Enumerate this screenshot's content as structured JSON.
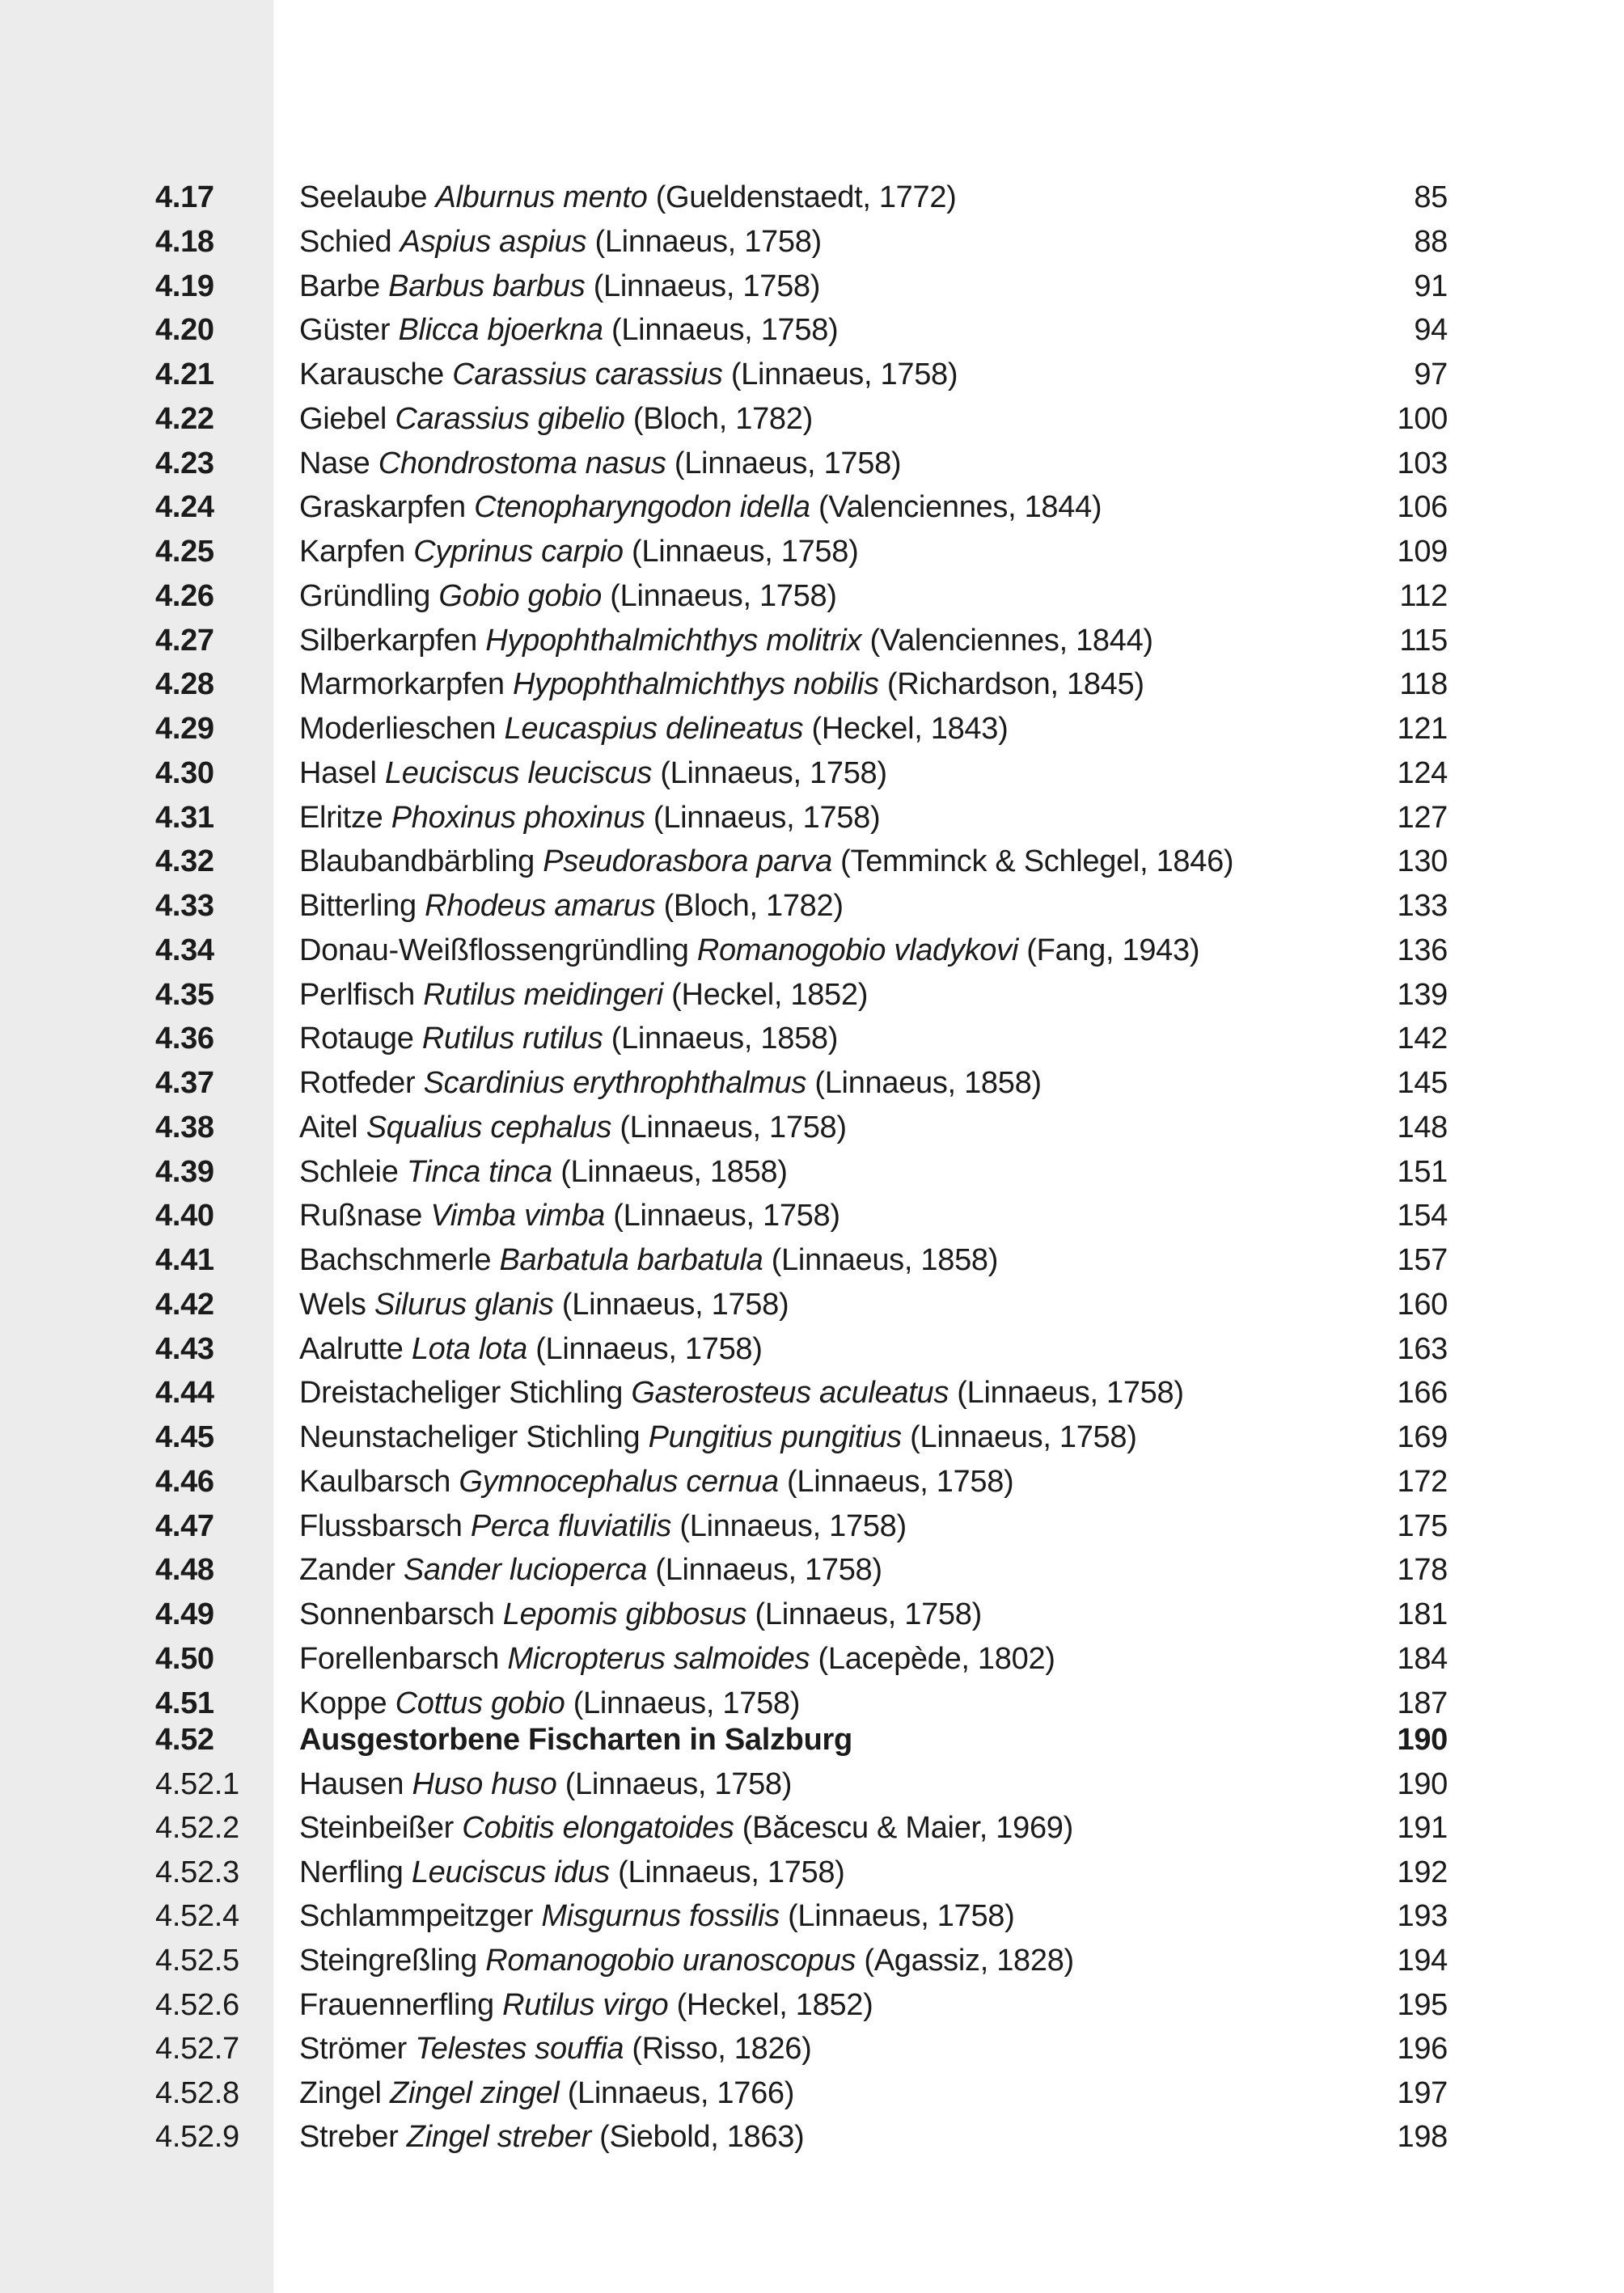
{
  "entries": [
    {
      "num": "4.17",
      "common": "Seelaube",
      "sci": "Alburnus mento",
      "author": "(Gueldenstaedt, 1772)",
      "page": "85",
      "bold_num": true
    },
    {
      "num": "4.18",
      "common": "Schied",
      "sci": "Aspius aspius",
      "author": "(Linnaeus, 1758)",
      "page": "88",
      "bold_num": true
    },
    {
      "num": "4.19",
      "common": "Barbe",
      "sci": "Barbus barbus",
      "author": "(Linnaeus, 1758)",
      "page": "91",
      "bold_num": true
    },
    {
      "num": "4.20",
      "common": "Güster",
      "sci": "Blicca bjoerkna",
      "author": "(Linnaeus, 1758)",
      "page": "94",
      "bold_num": true
    },
    {
      "num": "4.21",
      "common": "Karausche",
      "sci": "Carassius carassius",
      "author": "(Linnaeus, 1758)",
      "page": "97",
      "bold_num": true
    },
    {
      "num": "4.22",
      "common": "Giebel",
      "sci": "Carassius gibelio",
      "author": "(Bloch, 1782)",
      "page": "100",
      "bold_num": true
    },
    {
      "num": "4.23",
      "common": "Nase",
      "sci": "Chondrostoma nasus",
      "author": "(Linnaeus, 1758)",
      "page": "103",
      "bold_num": true
    },
    {
      "num": "4.24",
      "common": "Graskarpfen",
      "sci": "Ctenopharyngodon idella",
      "author": "(Valenciennes, 1844)",
      "page": "106",
      "bold_num": true
    },
    {
      "num": "4.25",
      "common": "Karpfen",
      "sci": "Cyprinus carpio",
      "author": "(Linnaeus, 1758)",
      "page": "109",
      "bold_num": true
    },
    {
      "num": "4.26",
      "common": "Gründling",
      "sci": "Gobio gobio",
      "author": "(Linnaeus, 1758)",
      "page": "112",
      "bold_num": true
    },
    {
      "num": "4.27",
      "common": "Silberkarpfen",
      "sci": "Hypophthalmichthys molitrix",
      "author": "(Valenciennes, 1844)",
      "page": "115",
      "bold_num": true
    },
    {
      "num": "4.28",
      "common": "Marmorkarpfen",
      "sci": "Hypophthalmichthys nobilis",
      "author": "(Richardson, 1845)",
      "page": "118",
      "bold_num": true
    },
    {
      "num": "4.29",
      "common": "Moderlieschen",
      "sci": "Leucaspius delineatus",
      "author": "(Heckel, 1843)",
      "page": "121",
      "bold_num": true
    },
    {
      "num": "4.30",
      "common": "Hasel",
      "sci": "Leuciscus leuciscus",
      "author": "(Linnaeus, 1758)",
      "page": "124",
      "bold_num": true
    },
    {
      "num": "4.31",
      "common": "Elritze",
      "sci": "Phoxinus phoxinus",
      "author": "(Linnaeus, 1758)",
      "page": "127",
      "bold_num": true
    },
    {
      "num": "4.32",
      "common": "Blaubandbärbling",
      "sci": "Pseudorasbora parva",
      "author": "(Temminck & Schlegel, 1846)",
      "page": "130",
      "bold_num": true
    },
    {
      "num": "4.33",
      "common": "Bitterling",
      "sci": "Rhodeus amarus",
      "author": "(Bloch, 1782)",
      "page": "133",
      "bold_num": true
    },
    {
      "num": "4.34",
      "common": "Donau-Weißflossengründling",
      "sci": "Romanogobio vladykovi",
      "author": "(Fang, 1943)",
      "page": "136",
      "bold_num": true
    },
    {
      "num": "4.35",
      "common": "Perlfisch",
      "sci": "Rutilus meidingeri",
      "author": "(Heckel, 1852)",
      "page": "139",
      "bold_num": true
    },
    {
      "num": "4.36",
      "common": "Rotauge",
      "sci": "Rutilus rutilus",
      "author": "(Linnaeus, 1858)",
      "page": "142",
      "bold_num": true
    },
    {
      "num": "4.37",
      "common": "Rotfeder",
      "sci": "Scardinius erythrophthalmus",
      "author": "(Linnaeus, 1858)",
      "page": "145",
      "bold_num": true
    },
    {
      "num": "4.38",
      "common": "Aitel",
      "sci": "Squalius cephalus",
      "author": "(Linnaeus, 1758)",
      "page": "148",
      "bold_num": true
    },
    {
      "num": "4.39",
      "common": "Schleie",
      "sci": "Tinca tinca",
      "author": "(Linnaeus, 1858)",
      "page": "151",
      "bold_num": true
    },
    {
      "num": "4.40",
      "common": "Rußnase",
      "sci": "Vimba vimba",
      "author": "(Linnaeus, 1758)",
      "page": "154",
      "bold_num": true
    },
    {
      "num": "4.41",
      "common": "Bachschmerle",
      "sci": "Barbatula barbatula",
      "author": "(Linnaeus, 1858)",
      "page": "157",
      "bold_num": true
    },
    {
      "num": "4.42",
      "common": "Wels",
      "sci": "Silurus glanis",
      "author": "(Linnaeus, 1758)",
      "page": "160",
      "bold_num": true
    },
    {
      "num": "4.43",
      "common": "Aalrutte",
      "sci": "Lota lota",
      "author": "(Linnaeus, 1758)",
      "page": "163",
      "bold_num": true
    },
    {
      "num": "4.44",
      "common": "Dreistacheliger Stichling",
      "sci": "Gasterosteus aculeatus",
      "author": "(Linnaeus, 1758)",
      "page": "166",
      "bold_num": true
    },
    {
      "num": "4.45",
      "common": "Neunstacheliger Stichling",
      "sci": "Pungitius pungitius",
      "author": "(Linnaeus, 1758)",
      "page": "169",
      "bold_num": true
    },
    {
      "num": "4.46",
      "common": "Kaulbarsch",
      "sci": "Gymnocephalus cernua",
      "author": "(Linnaeus, 1758)",
      "page": "172",
      "bold_num": true
    },
    {
      "num": "4.47",
      "common": "Flussbarsch",
      "sci": "Perca fluviatilis",
      "author": "(Linnaeus, 1758)",
      "page": "175",
      "bold_num": true
    },
    {
      "num": "4.48",
      "common": "Zander",
      "sci": "Sander lucioperca",
      "author": "(Linnaeus, 1758)",
      "page": "178",
      "bold_num": true
    },
    {
      "num": "4.49",
      "common": "Sonnenbarsch",
      "sci": "Lepomis gibbosus",
      "author": "(Linnaeus, 1758)",
      "page": "181",
      "bold_num": true
    },
    {
      "num": "4.50",
      "common": "Forellenbarsch",
      "sci": "Micropterus salmoides",
      "author": "(Lacepède, 1802)",
      "page": "184",
      "bold_num": true
    },
    {
      "num": "4.51",
      "common": "Koppe",
      "sci": "Cottus gobio",
      "author": "(Linnaeus, 1758)",
      "page": "187",
      "bold_num": true
    }
  ],
  "section": {
    "num": "4.52",
    "title": "Ausgestorbene Fischarten in Salzburg",
    "page": "190"
  },
  "subentries": [
    {
      "num": "4.52.1",
      "common": "Hausen",
      "sci": "Huso huso",
      "author": "(Linnaeus, 1758)",
      "page": "190"
    },
    {
      "num": "4.52.2",
      "common": "Steinbeißer",
      "sci": "Cobitis elongatoides",
      "author": "(Băcescu & Maier, 1969)",
      "page": "191"
    },
    {
      "num": "4.52.3",
      "common": "Nerfling",
      "sci": "Leuciscus idus",
      "author": "(Linnaeus, 1758)",
      "page": "192"
    },
    {
      "num": "4.52.4",
      "common": "Schlammpeitzger",
      "sci": "Misgurnus fossilis",
      "author": "(Linnaeus, 1758)",
      "page": "193"
    },
    {
      "num": "4.52.5",
      "common": "Steingreßling",
      "sci": "Romanogobio uranoscopus",
      "author": "(Agassiz, 1828)",
      "page": "194"
    },
    {
      "num": "4.52.6",
      "common": "Frauennerfling",
      "sci": "Rutilus virgo",
      "author": "(Heckel, 1852)",
      "page": "195"
    },
    {
      "num": "4.52.7",
      "common": "Strömer",
      "sci": "Telestes souffia",
      "author": "(Risso, 1826)",
      "page": "196"
    },
    {
      "num": "4.52.8",
      "common": "Zingel",
      "sci": "Zingel zingel",
      "author": "(Linnaeus, 1766)",
      "page": "197"
    },
    {
      "num": "4.52.9",
      "common": "Streber",
      "sci": "Zingel streber",
      "author": "(Siebold, 1863)",
      "page": "198"
    }
  ]
}
